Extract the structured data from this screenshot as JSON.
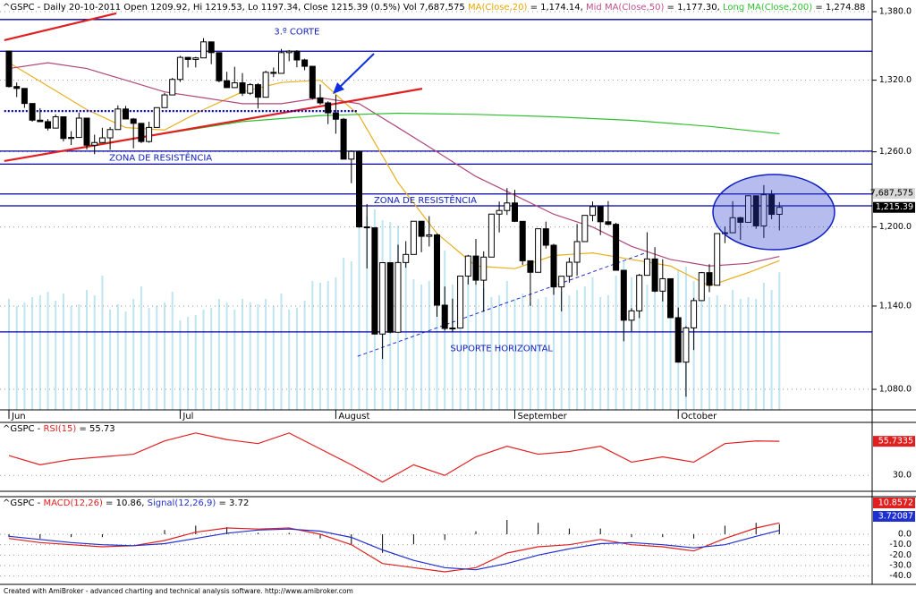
{
  "chart_data": {
    "type": "candlestick",
    "header": [
      {
        "text": "^GSPC - Daily 20-10-2011 Open 1209.92, Hi 1219.53, Lo 1197.34, Close 1215.39 (0.5%) Vol 7,687,575 ",
        "color": "#000000"
      },
      {
        "text": "MA(Close,20)",
        "color": "#e8a800"
      },
      {
        "text": " = 1,174.14, ",
        "color": "#000000"
      },
      {
        "text": "Mid MA(Close,50)",
        "color": "#c0508a"
      },
      {
        "text": " = 1,177.30, ",
        "color": "#000000"
      },
      {
        "text": "Long MA(Close,200)",
        "color": "#30c030"
      },
      {
        "text": " = 1,274.88",
        "color": "#000000"
      }
    ],
    "log_scale": true,
    "ylim": [
      1065.7,
      1390.5
    ],
    "yticks": [
      {
        "value": 1380,
        "label": "1,380.0"
      },
      {
        "value": 1320,
        "label": "1,320.0"
      },
      {
        "value": 1260,
        "label": "1,260.0"
      },
      {
        "value": 1200,
        "label": "1,200.0"
      },
      {
        "value": 1140,
        "label": "1,140.0"
      },
      {
        "value": 1080,
        "label": "1,080.0"
      }
    ],
    "grid": true,
    "months": [
      {
        "label": "Jun",
        "index": 0
      },
      {
        "label": "Jul",
        "index": 22
      },
      {
        "label": "August",
        "index": 42
      },
      {
        "label": "September",
        "index": 65
      },
      {
        "label": "October",
        "index": 86
      }
    ],
    "open": [
      1345.2,
      1314.55,
      1312.94,
      1300.16,
      1286.17,
      1284.94,
      1279.56,
      1289.0,
      1270.98,
      1271.83,
      1287.87,
      1265.42,
      1267.64,
      1271.5,
      1278.36,
      1295.52,
      1287.14,
      1283.5,
      1268.45,
      1280.1,
      1296.67,
      1307.41,
      1320.64,
      1339.67,
      1337.88,
      1339.22,
      1353.22,
      1343.8,
      1319.49,
      1313.64,
      1317.72,
      1308.87,
      1316.14,
      1305.44,
      1326.73,
      1325.84,
      1343.8,
      1345.02,
      1337.43,
      1331.94,
      1304.89,
      1300.67,
      1292.28,
      1286.94,
      1254.05,
      1260.34,
      1200.07,
      1199.38,
      1119.46,
      1172.53,
      1120.76,
      1172.64,
      1178.81,
      1204.49,
      1192.76,
      1193.89,
      1140.65,
      1123.53,
      1123.82,
      1162.35,
      1177.6,
      1159.27,
      1176.8,
      1210.08,
      1212.92,
      1218.89,
      1204.42,
      1173.97,
      1165.24,
      1198.62,
      1185.9,
      1154.23,
      1162.27,
      1172.87,
      1188.68,
      1209.11,
      1216.01,
      1204.09,
      1202.09,
      1166.76,
      1129.56,
      1136.43,
      1162.95,
      1175.38,
      1151.06,
      1160.4,
      1131.42,
      1099.23,
      1123.95,
      1144.03,
      1164.97,
      1155.46,
      1194.89,
      1195.54,
      1207.25,
      1203.66,
      1224.58,
      1200.86,
      1225.38,
      1209.92
    ],
    "high": [
      1345.2,
      1318.0,
      1312.9,
      1300.2,
      1296.2,
      1287.0,
      1291.0,
      1289.0,
      1277.0,
      1292.5,
      1287.9,
      1274.1,
      1279.8,
      1280.4,
      1298.6,
      1298.1,
      1288.0,
      1283.9,
      1284.9,
      1296.8,
      1309.2,
      1321.9,
      1341.0,
      1340.0,
      1340.1,
      1356.5,
      1353.2,
      1343.8,
      1327.2,
      1331.5,
      1326.1,
      1317.5,
      1317.5,
      1328.1,
      1330.9,
      1347.0,
      1346.1,
      1346.0,
      1338.5,
      1331.9,
      1316.3,
      1302.0,
      1307.4,
      1288.0,
      1261.2,
      1261.0,
      1218.0,
      1199.4,
      1172.9,
      1172.6,
      1186.3,
      1189.0,
      1204.5,
      1204.5,
      1208.5,
      1195.0,
      1154.5,
      1145.5,
      1162.4,
      1178.5,
      1190.7,
      1181.2,
      1210.1,
      1220.0,
      1230.7,
      1229.3,
      1204.4,
      1173.7,
      1198.6,
      1204.2,
      1187.0,
      1162.5,
      1176.4,
      1202.3,
      1209.1,
      1220.1,
      1216.0,
      1220.4,
      1203.3,
      1167.0,
      1138.4,
      1164.1,
      1195.9,
      1184.4,
      1175.1,
      1160.4,
      1138.9,
      1125.1,
      1146.1,
      1165.5,
      1171.4,
      1194.9,
      1200.4,
      1220.3,
      1208.0,
      1224.6,
      1224.6,
      1233.1,
      1229.1,
      1219.53
    ],
    "low": [
      1313.7,
      1305.6,
      1296.5,
      1284.9,
      1284.7,
      1277.6,
      1279.6,
      1268.6,
      1265.6,
      1271.8,
      1261.9,
      1258.1,
      1267.6,
      1261.7,
      1278.4,
      1286.8,
      1262.9,
      1267.2,
      1267.5,
      1280.1,
      1296.7,
      1307.6,
      1318.5,
      1330.9,
      1330.9,
      1339.6,
      1333.8,
      1318.1,
      1313.3,
      1314.4,
      1306.5,
      1307.4,
      1295.9,
      1305.4,
      1322.6,
      1325.8,
      1336.3,
      1331.1,
      1328.5,
      1303.5,
      1299.2,
      1282.9,
      1274.9,
      1254.0,
      1234.6,
      1199.5,
      1168.1,
      1119.3,
      1101.5,
      1120.0,
      1121.1,
      1168.7,
      1178.8,
      1180.5,
      1184.9,
      1132.1,
      1122.0,
      1121.1,
      1123.8,
      1156.1,
      1155.9,
      1135.9,
      1177.0,
      1195.8,
      1209.4,
      1203.9,
      1170.7,
      1140.1,
      1165.2,
      1183.3,
      1148.4,
      1136.1,
      1157.4,
      1162.7,
      1189.0,
      1204.5,
      1193.7,
      1201.3,
      1166.5,
      1114.2,
      1121.4,
      1131.1,
      1163.0,
      1150.3,
      1143.4,
      1131.4,
      1098.9,
      1074.8,
      1107.9,
      1144.0,
      1150.3,
      1158.0,
      1187.5,
      1196.1,
      1190.0,
      1205.4,
      1198.6,
      1191.5,
      1206.1,
      1197.34
    ],
    "close": [
      1314.55,
      1312.94,
      1300.16,
      1286.17,
      1284.94,
      1279.56,
      1289.0,
      1270.98,
      1271.83,
      1287.87,
      1265.42,
      1267.64,
      1271.5,
      1278.36,
      1295.52,
      1287.14,
      1283.5,
      1268.45,
      1280.1,
      1296.67,
      1307.41,
      1320.64,
      1339.67,
      1337.88,
      1339.22,
      1353.22,
      1343.8,
      1319.49,
      1313.64,
      1317.72,
      1308.87,
      1316.14,
      1305.44,
      1326.73,
      1325.84,
      1343.8,
      1345.02,
      1337.43,
      1331.94,
      1304.89,
      1300.67,
      1292.28,
      1286.94,
      1254.05,
      1260.34,
      1200.07,
      1199.38,
      1119.46,
      1172.53,
      1120.76,
      1172.64,
      1178.81,
      1204.49,
      1192.76,
      1193.89,
      1140.65,
      1123.53,
      1123.82,
      1162.35,
      1177.6,
      1159.27,
      1176.8,
      1210.08,
      1212.92,
      1218.89,
      1204.42,
      1173.97,
      1165.24,
      1198.62,
      1185.9,
      1154.23,
      1162.27,
      1172.87,
      1188.68,
      1209.11,
      1216.01,
      1204.09,
      1202.09,
      1166.76,
      1129.56,
      1136.43,
      1162.95,
      1175.38,
      1151.06,
      1160.4,
      1131.42,
      1099.23,
      1123.95,
      1144.03,
      1164.97,
      1155.46,
      1194.89,
      1195.54,
      1207.25,
      1203.66,
      1224.58,
      1200.86,
      1225.38,
      1209.88,
      1215.39
    ],
    "close_label": "1,215.39",
    "volume": [
      6200000,
      5800000,
      6000000,
      6300000,
      6400000,
      6600000,
      6100000,
      6500000,
      5800000,
      5900000,
      6700000,
      6400000,
      7500000,
      5600000,
      5900000,
      5500000,
      6200000,
      6900000,
      5700000,
      5800000,
      6000000,
      6600000,
      5000000,
      5200000,
      5300000,
      5600000,
      5700000,
      6200000,
      6000000,
      5600000,
      6200000,
      6000000,
      5900000,
      6200000,
      5800000,
      6500000,
      5600000,
      5700000,
      6100000,
      7200000,
      7100000,
      7200000,
      7400000,
      8500000,
      8300000,
      10200000,
      10800000,
      11200000,
      10600000,
      10500000,
      10300000,
      8500000,
      7300000,
      7000000,
      7200000,
      8800000,
      8900000,
      7000000,
      7500000,
      7300000,
      7000000,
      6800000,
      6300000,
      6400000,
      7200000,
      6200000,
      6500000,
      6000000,
      6200000,
      6300000,
      7000000,
      6600000,
      6400000,
      6700000,
      6900000,
      7400000,
      6300000,
      6400000,
      7500000,
      8300000,
      7400000,
      6700000,
      7000000,
      6800000,
      7300000,
      7200000,
      7800000,
      8000000,
      7200000,
      6600000,
      6300000,
      6400000,
      5900000,
      6700000,
      6200000,
      6300000,
      6200000,
      7100000,
      6700000,
      7687575
    ],
    "volume_label": "7,687,575",
    "volume_lim": [
      0,
      22900000
    ],
    "volume_color": "#bfe4f2",
    "moving_averages": [
      {
        "name": "MA(Close,20)",
        "color": "#e8b020",
        "x": [
          0,
          5,
          10,
          15,
          20,
          25,
          30,
          35,
          40,
          45,
          50,
          55,
          60,
          65,
          70,
          75,
          80,
          85,
          90,
          95,
          99
        ],
        "values": [
          1335,
          1315,
          1295,
          1280,
          1278,
          1295,
          1310,
          1318,
          1320,
          1290,
          1235,
          1195,
          1170,
          1168,
          1178,
          1180,
          1175,
          1170,
          1155,
          1165,
          1174.14
        ]
      },
      {
        "name": "Mid MA(Close,50)",
        "color": "#b0487a",
        "x": [
          0,
          5,
          10,
          15,
          20,
          25,
          30,
          35,
          40,
          45,
          50,
          55,
          60,
          65,
          70,
          75,
          80,
          85,
          90,
          95,
          99
        ],
        "values": [
          1330,
          1335,
          1330,
          1320,
          1310,
          1305,
          1300,
          1300,
          1305,
          1300,
          1280,
          1260,
          1240,
          1225,
          1210,
          1200,
          1185,
          1175,
          1170,
          1172,
          1177.3
        ]
      },
      {
        "name": "Long MA(Close,200)",
        "color": "#30c030",
        "x": [
          10,
          20,
          30,
          40,
          50,
          60,
          70,
          80,
          90,
          99
        ],
        "values": [
          1265,
          1275,
          1285,
          1290,
          1292,
          1291,
          1289,
          1286,
          1281,
          1274.88
        ]
      }
    ],
    "hlines": [
      1373,
      1345,
      1260.6,
      1250,
      1226,
      1216.6,
      1121
    ],
    "hline_color": "#0000a0",
    "trend_lines": [
      {
        "x": [
          -0.6,
          13.8
        ],
        "values": [
          1354.7,
          1378.5
        ],
        "color": "#e02020",
        "style": "solid"
      },
      {
        "x": [
          -0.6,
          53.1
        ],
        "values": [
          1252.5,
          1312.7
        ],
        "color": "#e02020",
        "style": "solid"
      },
      {
        "x": [
          -0.6,
          44.8
        ],
        "values": [
          1293.8,
          1293.8
        ],
        "color": "#0000c0",
        "style": "dotted"
      },
      {
        "x": [
          44.8,
          81.6
        ],
        "values": [
          1103.4,
          1179.6
        ],
        "color": "#2030d0",
        "style": "dashed"
      }
    ],
    "annotations": [
      {
        "text": "3.º CORTE",
        "x": 37,
        "value": 1362
      },
      {
        "text": "ZONA DE RESISTÊNCIA",
        "x": 19.5,
        "value": 1255
      },
      {
        "text": "ZONA DE RESISTÊNCIA",
        "x": 53.5,
        "value": 1221
      },
      {
        "text": "SUPORTE HORIZONTAL",
        "x": 63.3,
        "value": 1109
      }
    ],
    "rsi": {
      "header": [
        {
          "text": "^GSPC - ",
          "color": "#000000"
        },
        {
          "text": "RSI(15)",
          "color": "#e02020"
        },
        {
          "text": " = 55.73",
          "color": "#000000"
        }
      ],
      "color": "#e02020",
      "ylim": [
        18,
        70
      ],
      "yticks": [
        {
          "value": 30,
          "label": "30.0"
        }
      ],
      "x": [
        0,
        4,
        8,
        12,
        16,
        20,
        24,
        28,
        32,
        36,
        40,
        44,
        48,
        52,
        56,
        60,
        64,
        68,
        72,
        76,
        80,
        84,
        88,
        92,
        96,
        99
      ],
      "values": [
        45,
        38,
        42,
        44,
        46,
        56,
        62,
        57,
        54,
        62,
        50,
        38,
        25,
        38,
        30,
        44,
        52,
        46,
        48,
        52,
        40,
        44,
        40,
        54,
        56,
        55.7335
      ],
      "last_label": "55.7335"
    },
    "macd": {
      "header": [
        {
          "text": "^GSPC - ",
          "color": "#000000"
        },
        {
          "text": "MACD(12,26)",
          "color": "#e02020"
        },
        {
          "text": " = 10.86, ",
          "color": "#000000"
        },
        {
          "text": "Signal(12,26,9)",
          "color": "#2030d0"
        },
        {
          "text": " = 3.72",
          "color": "#000000"
        }
      ],
      "ylim": [
        -48,
        36
      ],
      "yticks": [
        {
          "value": 0,
          "label": "0.0"
        },
        {
          "value": -10,
          "label": "-10.0"
        },
        {
          "value": -20,
          "label": "-20.0"
        },
        {
          "value": -30,
          "label": "-30.0"
        },
        {
          "value": -40,
          "label": "-40.0"
        }
      ],
      "x": [
        0,
        4,
        8,
        12,
        16,
        20,
        24,
        28,
        32,
        36,
        40,
        44,
        48,
        52,
        56,
        60,
        64,
        68,
        72,
        76,
        80,
        84,
        88,
        92,
        96,
        99
      ],
      "series": [
        {
          "name": "MACD(12,26)",
          "color": "#e02020",
          "values": [
            -4,
            -8,
            -10,
            -12,
            -11,
            -6,
            2,
            6,
            5,
            6,
            0,
            -10,
            -28,
            -32,
            -36,
            -32,
            -18,
            -12,
            -10,
            -5,
            -10,
            -12,
            -16,
            -4,
            6,
            10.8572
          ],
          "last_label": "10.8572"
        },
        {
          "name": "Signal(12,26,9)",
          "color": "#2030d0",
          "values": [
            -2,
            -5,
            -8,
            -10,
            -11,
            -9,
            -4,
            1,
            4,
            5,
            3,
            -3,
            -15,
            -25,
            -32,
            -34,
            -28,
            -20,
            -14,
            -9,
            -8,
            -10,
            -13,
            -10,
            -2,
            3.72087
          ],
          "last_label": "3.72087"
        }
      ]
    },
    "footer": "Created with AmiBroker - advanced charting and technical analysis software. http://www.amibroker.com"
  }
}
